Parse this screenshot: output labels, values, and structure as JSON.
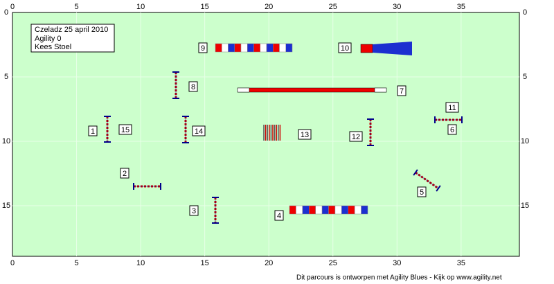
{
  "axes": {
    "x_ticks": [
      0,
      5,
      10,
      15,
      20,
      25,
      30,
      35
    ],
    "y_ticks": [
      0,
      5,
      10,
      15
    ]
  },
  "info": [
    "Czeladz 25 april 2010",
    "Agility 0",
    "Kees Stoel"
  ],
  "obstacles": [
    "1",
    "2",
    "3",
    "4",
    "5",
    "6",
    "7",
    "8",
    "9",
    "10",
    "11",
    "12",
    "13",
    "14",
    "15"
  ],
  "footer": "Dit parcours is ontworpen met Agility Blues - Kijk op www.agility.net"
}
